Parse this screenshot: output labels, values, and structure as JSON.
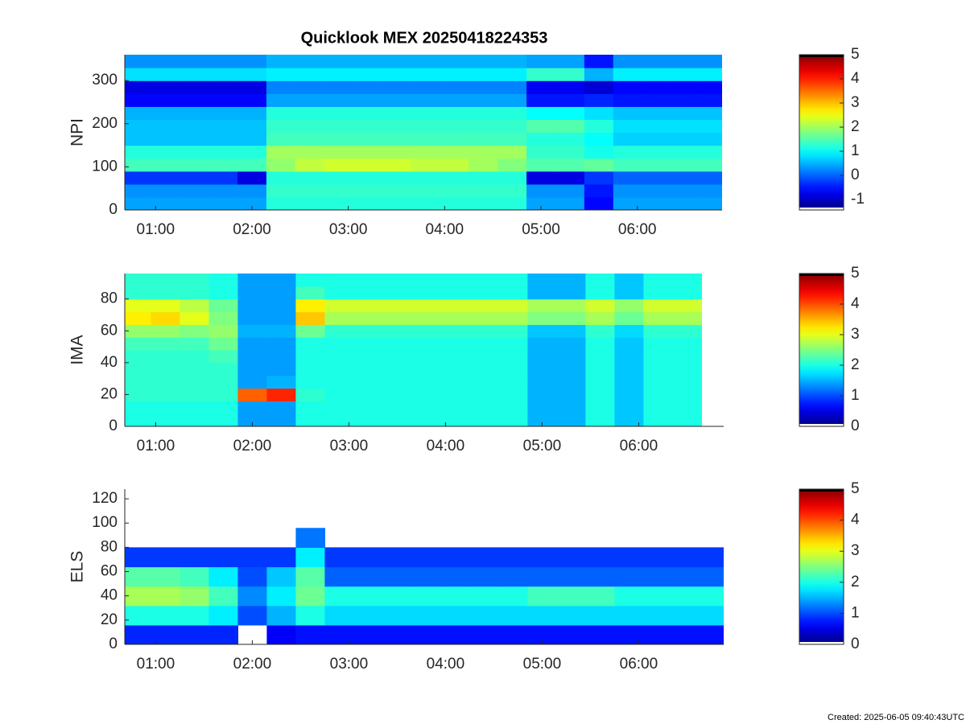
{
  "chart_data": [
    {
      "type": "heatmap",
      "title": "Quicklook MEX 20250418224353",
      "ylabel": "NPI",
      "colormap": "jet",
      "x": [
        0.8,
        1.1,
        1.4,
        1.7,
        2.0,
        2.3,
        2.6,
        2.9,
        3.2,
        3.5,
        3.8,
        4.1,
        4.4,
        4.7,
        5.0,
        5.3,
        5.6,
        5.9,
        6.2,
        6.5,
        6.8
      ],
      "y": [
        15,
        45,
        75,
        105,
        135,
        165,
        195,
        225,
        255,
        285,
        315,
        345
      ],
      "z": [
        [
          0.4,
          0.4,
          0.4,
          0.4,
          0.4,
          1.2,
          1.2,
          1.2,
          1.2,
          1.2,
          1.2,
          1.2,
          1.2,
          1.2,
          0.4,
          0.4,
          -0.6,
          0.4,
          0.4,
          0.4,
          0.4
        ],
        [
          0.3,
          0.3,
          0.3,
          0.3,
          0.3,
          1.3,
          1.3,
          1.3,
          1.3,
          1.3,
          1.3,
          1.3,
          1.3,
          1.3,
          0.3,
          0.3,
          -0.5,
          0.3,
          0.3,
          0.3,
          0.3
        ],
        [
          -0.3,
          -0.3,
          -0.3,
          -0.3,
          -0.8,
          1.2,
          1.2,
          1.2,
          1.2,
          1.2,
          1.2,
          1.2,
          1.2,
          1.2,
          -0.8,
          -0.8,
          -0.3,
          0.0,
          0.0,
          0.0,
          0.0
        ],
        [
          1.4,
          1.4,
          1.4,
          1.4,
          1.4,
          1.9,
          2.2,
          2.3,
          2.3,
          2.3,
          2.2,
          2.2,
          2.0,
          1.8,
          1.5,
          1.5,
          1.6,
          1.4,
          1.4,
          1.4,
          1.4
        ],
        [
          1.2,
          1.2,
          1.2,
          1.2,
          1.2,
          2.0,
          2.0,
          2.0,
          2.0,
          2.0,
          2.0,
          2.0,
          2.0,
          2.0,
          1.3,
          1.3,
          1.1,
          1.2,
          1.2,
          1.2,
          1.2
        ],
        [
          0.6,
          0.6,
          0.6,
          0.6,
          0.6,
          1.4,
          1.4,
          1.4,
          1.4,
          1.4,
          1.4,
          1.4,
          1.4,
          1.4,
          1.2,
          1.2,
          1.0,
          0.7,
          0.7,
          0.7,
          0.7
        ],
        [
          0.6,
          0.6,
          0.6,
          0.6,
          0.6,
          1.3,
          1.3,
          1.3,
          1.3,
          1.3,
          1.3,
          1.3,
          1.3,
          1.3,
          1.5,
          1.5,
          1.2,
          0.8,
          0.8,
          0.8,
          0.8
        ],
        [
          0.5,
          0.5,
          0.5,
          0.5,
          0.5,
          1.2,
          1.2,
          1.2,
          1.2,
          1.2,
          1.2,
          1.2,
          1.2,
          1.2,
          1.0,
          1.0,
          0.8,
          0.6,
          0.6,
          0.6,
          0.6
        ],
        [
          -0.6,
          -0.6,
          -0.6,
          -0.6,
          -0.6,
          0.4,
          0.4,
          0.4,
          0.4,
          0.4,
          0.4,
          0.4,
          0.4,
          0.4,
          -0.5,
          -0.5,
          -0.4,
          -0.5,
          -0.5,
          -0.5,
          -0.5
        ],
        [
          -0.8,
          -0.8,
          -0.8,
          -0.8,
          -0.8,
          0.2,
          0.2,
          0.2,
          0.2,
          0.2,
          0.2,
          0.2,
          0.2,
          0.2,
          -0.7,
          -0.7,
          -0.9,
          -0.6,
          -0.6,
          -0.6,
          -0.6
        ],
        [
          0.8,
          0.8,
          0.8,
          0.8,
          0.8,
          0.9,
          0.9,
          0.9,
          0.9,
          0.9,
          0.9,
          0.9,
          0.9,
          0.9,
          1.3,
          1.3,
          0.5,
          0.9,
          0.9,
          0.9,
          0.9
        ],
        [
          0.3,
          0.3,
          0.3,
          0.3,
          0.3,
          0.5,
          0.5,
          0.5,
          0.5,
          0.5,
          0.5,
          0.5,
          0.5,
          0.5,
          0.4,
          0.4,
          -0.5,
          0.3,
          0.3,
          0.3,
          0.3
        ]
      ],
      "xlim": [
        0.68,
        6.88
      ],
      "ylim": [
        0,
        360
      ],
      "yticks": [
        0,
        100,
        200,
        300
      ],
      "xticks": [
        {
          "value": 1,
          "label": "01:00"
        },
        {
          "value": 2,
          "label": "02:00"
        },
        {
          "value": 3,
          "label": "03:00"
        },
        {
          "value": 4,
          "label": "04:00"
        },
        {
          "value": 5,
          "label": "05:00"
        },
        {
          "value": 6,
          "label": "06:00"
        }
      ],
      "clim": [
        -1.43,
        5
      ],
      "cticks": [
        -1,
        0,
        1,
        2,
        3,
        4,
        5
      ]
    },
    {
      "type": "heatmap",
      "ylabel": "IMA",
      "colormap": "jet",
      "x": [
        0.8,
        1.1,
        1.4,
        1.7,
        2.0,
        2.3,
        2.6,
        2.9,
        3.2,
        3.5,
        3.8,
        4.1,
        4.4,
        4.7,
        5.0,
        5.3,
        5.6,
        5.9,
        6.2,
        6.5,
        6.8
      ],
      "y": [
        4,
        12,
        20,
        28,
        36,
        44,
        52,
        60,
        68,
        76,
        84,
        92
      ],
      "z": [
        [
          2.0,
          2.0,
          2.0,
          2.0,
          1.4,
          1.4,
          2.0,
          2.0,
          2.0,
          2.0,
          2.0,
          2.0,
          2.0,
          2.0,
          1.5,
          1.5,
          2.0,
          1.6,
          2.0,
          2.0,
          null
        ],
        [
          2.0,
          2.0,
          2.0,
          2.0,
          1.4,
          1.4,
          2.0,
          2.0,
          2.0,
          2.0,
          2.0,
          2.0,
          2.0,
          2.0,
          1.5,
          1.5,
          2.0,
          1.6,
          2.0,
          2.0,
          null
        ],
        [
          2.1,
          2.1,
          2.1,
          2.1,
          3.9,
          4.2,
          2.1,
          2.0,
          2.0,
          2.0,
          2.0,
          2.0,
          2.0,
          2.0,
          1.5,
          1.5,
          2.0,
          1.6,
          2.0,
          2.0,
          null
        ],
        [
          2.1,
          2.1,
          2.1,
          2.1,
          1.4,
          1.5,
          2.0,
          2.0,
          2.0,
          2.0,
          2.0,
          2.0,
          2.0,
          2.0,
          1.5,
          1.5,
          2.0,
          1.6,
          2.0,
          2.0,
          null
        ],
        [
          2.1,
          2.1,
          2.1,
          2.1,
          1.4,
          1.4,
          2.0,
          2.0,
          2.0,
          2.0,
          2.0,
          2.0,
          2.0,
          2.0,
          1.5,
          1.5,
          2.0,
          1.6,
          2.0,
          2.0,
          null
        ],
        [
          2.1,
          2.1,
          2.1,
          2.2,
          1.4,
          1.4,
          2.0,
          2.0,
          2.0,
          2.0,
          2.0,
          2.0,
          2.0,
          2.0,
          1.5,
          1.5,
          2.0,
          1.6,
          2.0,
          2.0,
          null
        ],
        [
          2.2,
          2.2,
          2.2,
          2.4,
          1.4,
          1.4,
          2.0,
          2.0,
          2.0,
          2.0,
          2.0,
          2.0,
          2.0,
          2.0,
          1.5,
          1.5,
          2.0,
          1.6,
          2.0,
          2.0,
          null
        ],
        [
          2.6,
          2.6,
          2.5,
          2.6,
          1.5,
          1.5,
          2.4,
          2.1,
          2.1,
          2.1,
          2.1,
          2.1,
          2.1,
          2.1,
          1.6,
          1.6,
          2.1,
          1.7,
          2.1,
          2.1,
          null
        ],
        [
          3.2,
          3.3,
          3.0,
          2.5,
          1.4,
          1.4,
          3.4,
          2.7,
          2.7,
          2.7,
          2.7,
          2.7,
          2.7,
          2.7,
          2.5,
          2.5,
          2.7,
          2.4,
          2.7,
          2.7,
          null
        ],
        [
          3.0,
          3.0,
          2.8,
          2.4,
          1.4,
          1.4,
          3.2,
          2.9,
          2.9,
          2.9,
          2.9,
          2.9,
          2.9,
          2.9,
          2.7,
          2.7,
          2.9,
          2.6,
          2.9,
          2.9,
          null
        ],
        [
          2.1,
          2.1,
          2.1,
          2.0,
          1.4,
          1.4,
          2.2,
          2.0,
          2.0,
          2.0,
          2.0,
          2.0,
          2.0,
          2.0,
          1.5,
          1.5,
          2.0,
          1.6,
          2.0,
          2.0,
          null
        ],
        [
          2.1,
          2.1,
          2.1,
          2.0,
          1.4,
          1.4,
          2.0,
          2.0,
          2.0,
          2.0,
          2.0,
          2.0,
          2.0,
          2.0,
          1.5,
          1.5,
          2.0,
          1.6,
          2.0,
          2.0,
          null
        ]
      ],
      "xlim": [
        0.68,
        6.88
      ],
      "ylim": [
        0,
        96
      ],
      "yticks": [
        0,
        20,
        40,
        60,
        80
      ],
      "xticks": [
        {
          "value": 1,
          "label": "01:00"
        },
        {
          "value": 2,
          "label": "02:00"
        },
        {
          "value": 3,
          "label": "03:00"
        },
        {
          "value": 4,
          "label": "04:00"
        },
        {
          "value": 5,
          "label": "05:00"
        },
        {
          "value": 6,
          "label": "06:00"
        }
      ],
      "clim": [
        0,
        5
      ],
      "cticks": [
        0,
        1,
        2,
        3,
        4,
        5
      ]
    },
    {
      "type": "heatmap",
      "ylabel": "ELS",
      "colormap": "jet",
      "x": [
        0.8,
        1.1,
        1.4,
        1.7,
        2.0,
        2.3,
        2.6,
        2.9,
        3.2,
        3.5,
        3.8,
        4.1,
        4.4,
        4.7,
        5.0,
        5.3,
        5.6,
        5.9,
        6.2,
        6.5,
        6.8
      ],
      "y": [
        8,
        24,
        40,
        56,
        72,
        88,
        104,
        120
      ],
      "z": [
        [
          0.8,
          0.8,
          0.8,
          0.8,
          null,
          0.6,
          0.7,
          0.7,
          0.7,
          0.7,
          0.7,
          0.7,
          0.7,
          0.7,
          0.7,
          0.7,
          0.7,
          0.7,
          0.7,
          0.7,
          0.7
        ],
        [
          2.0,
          2.0,
          2.0,
          1.8,
          1.0,
          1.5,
          2.0,
          1.7,
          1.7,
          1.7,
          1.7,
          1.7,
          1.7,
          1.7,
          1.7,
          1.7,
          1.7,
          1.7,
          1.7,
          1.7,
          1.7
        ],
        [
          2.7,
          2.7,
          2.6,
          2.2,
          1.3,
          1.8,
          2.4,
          2.0,
          2.0,
          2.0,
          2.0,
          2.0,
          2.0,
          2.0,
          2.2,
          2.2,
          2.2,
          2.0,
          2.0,
          2.0,
          2.0
        ],
        [
          2.3,
          2.3,
          2.2,
          1.8,
          1.0,
          1.6,
          2.3,
          1.1,
          1.1,
          1.1,
          1.1,
          1.1,
          1.1,
          1.1,
          1.1,
          1.1,
          1.1,
          1.1,
          1.1,
          1.1,
          1.1
        ],
        [
          0.9,
          0.9,
          0.9,
          0.9,
          0.9,
          0.9,
          1.8,
          0.9,
          0.9,
          0.9,
          0.9,
          0.9,
          0.9,
          0.9,
          0.9,
          0.9,
          0.9,
          0.9,
          0.9,
          0.9,
          0.9
        ],
        [
          null,
          null,
          null,
          null,
          null,
          null,
          1.2,
          null,
          null,
          null,
          null,
          null,
          null,
          null,
          null,
          null,
          null,
          null,
          null,
          null,
          null
        ],
        [
          null,
          null,
          null,
          null,
          null,
          null,
          null,
          null,
          null,
          null,
          null,
          null,
          null,
          null,
          null,
          null,
          null,
          null,
          null,
          null,
          null
        ],
        [
          null,
          null,
          null,
          null,
          null,
          null,
          null,
          null,
          null,
          null,
          null,
          null,
          null,
          null,
          null,
          null,
          null,
          null,
          null,
          null,
          null
        ]
      ],
      "xlim": [
        0.68,
        6.88
      ],
      "ylim": [
        0,
        128
      ],
      "yticks": [
        0,
        20,
        40,
        60,
        80,
        100,
        120
      ],
      "xticks": [
        {
          "value": 1,
          "label": "01:00"
        },
        {
          "value": 2,
          "label": "02:00"
        },
        {
          "value": 3,
          "label": "03:00"
        },
        {
          "value": 4,
          "label": "04:00"
        },
        {
          "value": 5,
          "label": "05:00"
        },
        {
          "value": 6,
          "label": "06:00"
        }
      ],
      "clim": [
        0,
        5
      ],
      "cticks": [
        0,
        1,
        2,
        3,
        4,
        5
      ]
    }
  ],
  "created": "Created: 2025-06-05 09:40:43UTC"
}
